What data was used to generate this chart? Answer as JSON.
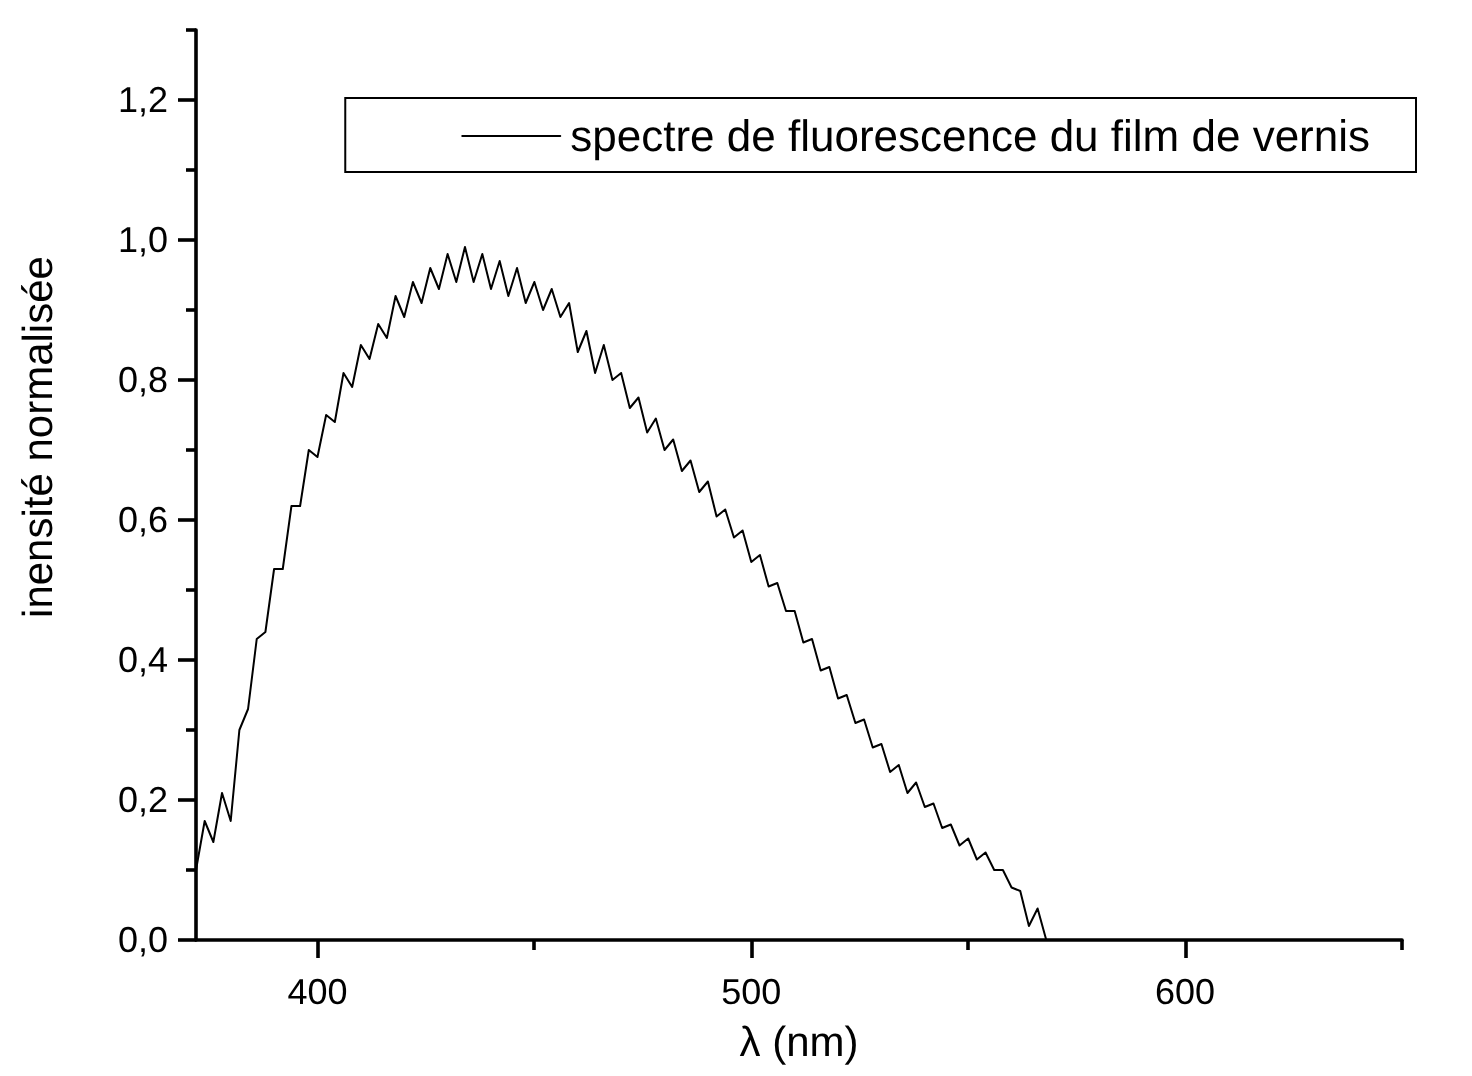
{
  "chart_data": {
    "type": "line",
    "xlabel": "λ (nm)",
    "ylabel": "inensité normalisée",
    "x": [
      372,
      374,
      376,
      378,
      380,
      382,
      384,
      386,
      388,
      390,
      392,
      394,
      396,
      398,
      400,
      402,
      404,
      406,
      408,
      410,
      412,
      414,
      416,
      418,
      420,
      422,
      424,
      426,
      428,
      430,
      432,
      434,
      436,
      438,
      440,
      442,
      444,
      446,
      448,
      450,
      452,
      454,
      456,
      458,
      460,
      462,
      464,
      466,
      468,
      470,
      472,
      474,
      476,
      478,
      480,
      482,
      484,
      486,
      488,
      490,
      492,
      494,
      496,
      498,
      500,
      502,
      504,
      506,
      508,
      510,
      512,
      514,
      516,
      518,
      520,
      522,
      524,
      526,
      528,
      530,
      532,
      534,
      536,
      538,
      540,
      542,
      544,
      546,
      548,
      550,
      552,
      554,
      556,
      558,
      560,
      562,
      564,
      566,
      568
    ],
    "series": [
      {
        "name": "spectre de fluorescence du film de vernis",
        "color": "#000000",
        "values": [
          0.1,
          0.17,
          0.14,
          0.21,
          0.17,
          0.3,
          0.33,
          0.43,
          0.44,
          0.53,
          0.53,
          0.62,
          0.62,
          0.7,
          0.69,
          0.75,
          0.74,
          0.81,
          0.79,
          0.85,
          0.83,
          0.88,
          0.86,
          0.92,
          0.89,
          0.94,
          0.91,
          0.96,
          0.93,
          0.98,
          0.94,
          0.99,
          0.94,
          0.98,
          0.93,
          0.97,
          0.92,
          0.96,
          0.91,
          0.94,
          0.9,
          0.93,
          0.89,
          0.91,
          0.84,
          0.87,
          0.81,
          0.85,
          0.8,
          0.81,
          0.76,
          0.775,
          0.725,
          0.745,
          0.7,
          0.715,
          0.67,
          0.685,
          0.64,
          0.655,
          0.605,
          0.615,
          0.575,
          0.585,
          0.54,
          0.55,
          0.505,
          0.51,
          0.47,
          0.47,
          0.425,
          0.43,
          0.385,
          0.39,
          0.345,
          0.35,
          0.31,
          0.315,
          0.275,
          0.28,
          0.24,
          0.25,
          0.21,
          0.225,
          0.19,
          0.195,
          0.16,
          0.165,
          0.135,
          0.145,
          0.115,
          0.125,
          0.1,
          0.1,
          0.075,
          0.07,
          0.02,
          0.045,
          0.0
        ]
      }
    ],
    "xlim": [
      372,
      650
    ],
    "ylim": [
      0,
      1.3
    ],
    "xticks": [
      400,
      {
        "value": 450,
        "label": null
      },
      500,
      {
        "value": 550,
        "label": null
      },
      600,
      {
        "value": 650,
        "label": null
      }
    ],
    "yticks": [
      {
        "value": 0,
        "label": "0,0"
      },
      {
        "value": 0.1,
        "label": null
      },
      {
        "value": 0.2,
        "label": "0,2"
      },
      {
        "value": 0.3,
        "label": null
      },
      {
        "value": 0.4,
        "label": "0,4"
      },
      {
        "value": 0.5,
        "label": null
      },
      {
        "value": 0.6,
        "label": "0,6"
      },
      {
        "value": 0.7,
        "label": null
      },
      {
        "value": 0.8,
        "label": "0,8"
      },
      {
        "value": 0.9,
        "label": null
      },
      {
        "value": 1.0,
        "label": "1,0"
      },
      {
        "value": 1.1,
        "label": null
      },
      {
        "value": 1.2,
        "label": "1,2"
      },
      {
        "value": 1.3,
        "label": null
      }
    ],
    "legend": "top right",
    "marker": "none",
    "line_style": "solid"
  }
}
